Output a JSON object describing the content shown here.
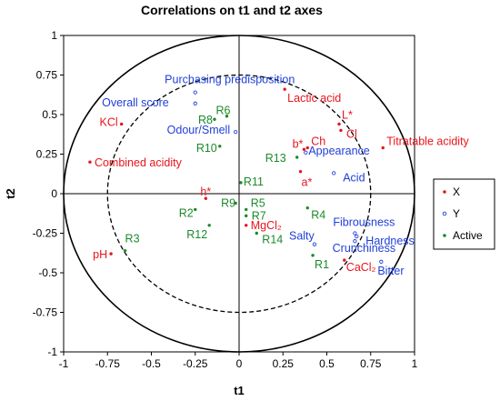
{
  "chart_data": {
    "type": "scatter",
    "title": "Correlations on t1 and t2 axes",
    "xlabel": "t1",
    "ylabel": "t2",
    "xlim": [
      -1,
      1
    ],
    "ylim": [
      -1,
      1
    ],
    "xticks": [
      "-1",
      "-0.75",
      "-0.5",
      "-0.25",
      "0",
      "0.25",
      "0.5",
      "0.75",
      "1"
    ],
    "yticks": [
      "-1",
      "-0.75",
      "-0.5",
      "-0.25",
      "0",
      "0.25",
      "0.5",
      "0.75",
      "1"
    ],
    "circles": [
      1.0,
      0.75
    ],
    "legend_position": "right",
    "colors": {
      "X": "#e8141c",
      "Y": "#1f3fd8",
      "Active": "#1b8a2a"
    },
    "series": [
      {
        "name": "X",
        "marker": "filled",
        "points": [
          {
            "label": "KCl",
            "x": -0.67,
            "y": 0.44
          },
          {
            "label": "Combined acidity",
            "x": -0.85,
            "y": 0.2
          },
          {
            "label": "pH",
            "x": -0.73,
            "y": -0.38
          },
          {
            "label": "Lactic acid",
            "x": 0.26,
            "y": 0.66
          },
          {
            "label": "L*",
            "x": 0.57,
            "y": 0.44
          },
          {
            "label": "Cl",
            "x": 0.58,
            "y": 0.4
          },
          {
            "label": "b*",
            "x": 0.37,
            "y": 0.28
          },
          {
            "label": "Ch",
            "x": 0.39,
            "y": 0.29
          },
          {
            "label": "Titratable acidity",
            "x": 0.82,
            "y": 0.29
          },
          {
            "label": "a*",
            "x": 0.35,
            "y": 0.14
          },
          {
            "label": "h*",
            "x": -0.19,
            "y": -0.03
          },
          {
            "label": "MgCl₂",
            "x": 0.04,
            "y": -0.2
          },
          {
            "label": "CaCl₂",
            "x": 0.6,
            "y": -0.42
          }
        ]
      },
      {
        "name": "Y",
        "marker": "open",
        "points": [
          {
            "label": "Purchasing predisposition",
            "x": -0.25,
            "y": 0.64
          },
          {
            "label": "Overall score",
            "x": -0.25,
            "y": 0.57
          },
          {
            "label": "Odour/Smell",
            "x": -0.02,
            "y": 0.39
          },
          {
            "label": "Appearance",
            "x": 0.38,
            "y": 0.26
          },
          {
            "label": "Acid",
            "x": 0.54,
            "y": 0.13
          },
          {
            "label": "Fibrousness",
            "x": 0.66,
            "y": -0.25
          },
          {
            "label": "Hardness",
            "x": 0.67,
            "y": -0.27
          },
          {
            "label": "Salty",
            "x": 0.43,
            "y": -0.32
          },
          {
            "label": "Crunchiness",
            "x": 0.66,
            "y": -0.3
          },
          {
            "label": "Bitter",
            "x": 0.81,
            "y": -0.43
          }
        ]
      },
      {
        "name": "Active",
        "marker": "filled",
        "points": [
          {
            "label": "R6",
            "x": -0.07,
            "y": 0.49
          },
          {
            "label": "R8",
            "x": -0.14,
            "y": 0.47
          },
          {
            "label": "R10",
            "x": -0.11,
            "y": 0.3
          },
          {
            "label": "R13",
            "x": 0.33,
            "y": 0.23
          },
          {
            "label": "R11",
            "x": 0.01,
            "y": 0.07
          },
          {
            "label": "R9",
            "x": -0.02,
            "y": -0.06
          },
          {
            "label": "R2",
            "x": -0.25,
            "y": -0.1
          },
          {
            "label": "R5",
            "x": 0.04,
            "y": -0.1
          },
          {
            "label": "R7",
            "x": 0.04,
            "y": -0.14
          },
          {
            "label": "R12",
            "x": -0.17,
            "y": -0.2
          },
          {
            "label": "R14",
            "x": 0.1,
            "y": -0.25
          },
          {
            "label": "R4",
            "x": 0.39,
            "y": -0.09
          },
          {
            "label": "R3",
            "x": -0.65,
            "y": -0.36
          },
          {
            "label": "R1",
            "x": 0.42,
            "y": -0.39
          }
        ]
      }
    ]
  }
}
